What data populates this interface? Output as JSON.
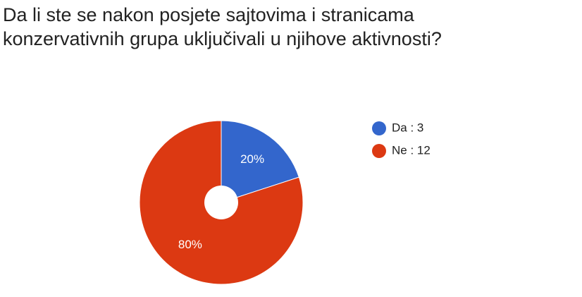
{
  "chart_data": {
    "type": "pie",
    "title": "Da li ste se nakon posjete sajtovima i stranicama konzervativnih grupa uključivali u njihove aktivnosti?",
    "categories": [
      "Da : 3",
      "Ne : 12"
    ],
    "values": [
      20,
      80
    ],
    "value_labels": [
      "20%",
      "80%"
    ],
    "colors": [
      "#3366cc",
      "#dc3912"
    ],
    "legend": "right"
  }
}
